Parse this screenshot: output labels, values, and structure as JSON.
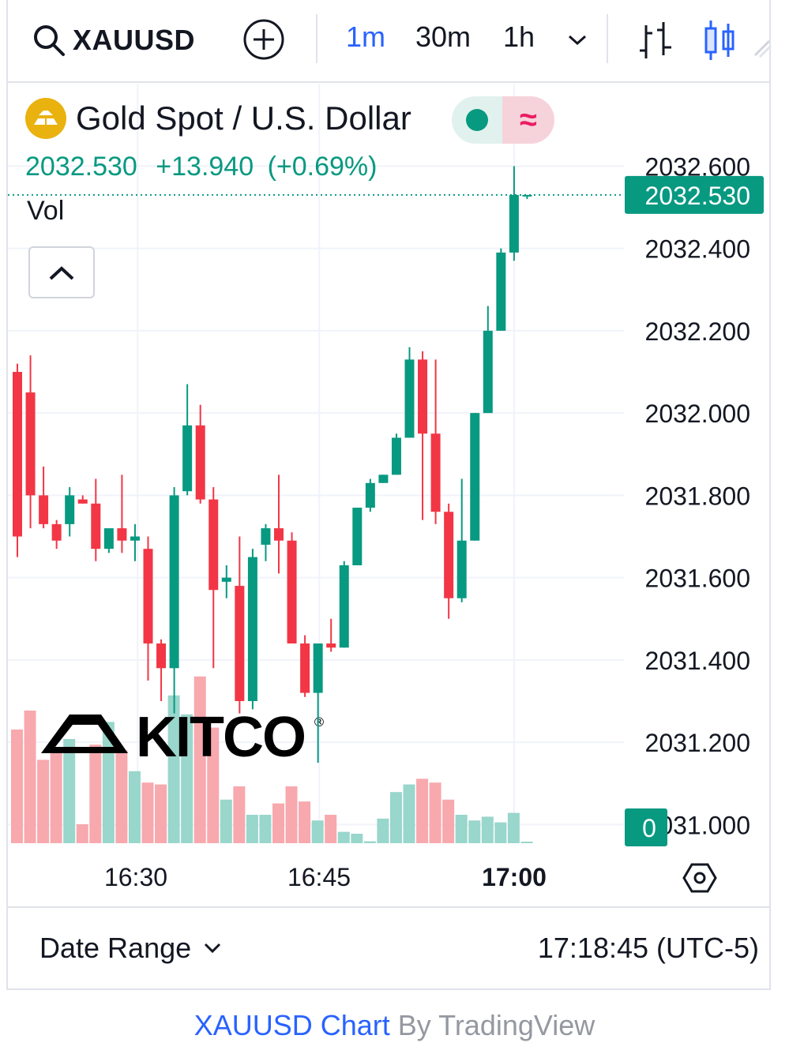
{
  "toolbar": {
    "symbol": "XAUUSD",
    "intervals": [
      "1m",
      "30m",
      "1h"
    ],
    "active_interval": "1m"
  },
  "legend": {
    "title": "Gold Spot / U.S. Dollar",
    "last": "2032.530",
    "change": "+13.940",
    "change_pct": "(+0.69%)",
    "volume_label": "Vol",
    "status_symbol": "≈"
  },
  "footer": {
    "date_range_label": "Date Range",
    "clock": "17:18:45 (UTC-5)",
    "credit_symbol": "XAUUSD Chart",
    "credit_by": "By TradingView"
  },
  "colors": {
    "up": "#089981",
    "down": "#f23645",
    "up_volume": "#99d6cc",
    "down_volume": "#f7a9ae",
    "accent": "#2962ff"
  },
  "chart_data": {
    "type": "candlestick",
    "symbol": "XAUUSD",
    "x_ticks": [
      "16:30",
      "16:45",
      "17:00"
    ],
    "x_tick_bold": "17:00",
    "y_ticks": [
      "2032.600",
      "2032.400",
      "2032.200",
      "2032.000",
      "2031.800",
      "2031.600",
      "2031.400",
      "2031.200",
      "2031.000"
    ],
    "ylim": [
      2030.97,
      2032.62
    ],
    "last_price_label": "2032.530",
    "last_price": 2032.53,
    "volume_axis_label": "0",
    "watermark": "KITCO",
    "grid": true,
    "candles": [
      {
        "o": 2032.1,
        "h": 2032.12,
        "l": 2031.65,
        "c": 2031.7,
        "v": 0.6
      },
      {
        "o": 2032.05,
        "h": 2032.14,
        "l": 2031.72,
        "c": 2031.8,
        "v": 0.7
      },
      {
        "o": 2031.8,
        "h": 2031.87,
        "l": 2031.72,
        "c": 2031.73,
        "v": 0.44
      },
      {
        "o": 2031.73,
        "h": 2031.74,
        "l": 2031.67,
        "c": 2031.69,
        "v": 0.5
      },
      {
        "o": 2031.73,
        "h": 2031.82,
        "l": 2031.7,
        "c": 2031.8,
        "v": 0.55
      },
      {
        "o": 2031.79,
        "h": 2031.8,
        "l": 2031.78,
        "c": 2031.78,
        "v": 0.1
      },
      {
        "o": 2031.78,
        "h": 2031.84,
        "l": 2031.64,
        "c": 2031.67,
        "v": 0.52
      },
      {
        "o": 2031.67,
        "h": 2031.71,
        "l": 2031.66,
        "c": 2031.72,
        "v": 0.64
      },
      {
        "o": 2031.72,
        "h": 2031.85,
        "l": 2031.66,
        "c": 2031.69,
        "v": 0.49
      },
      {
        "o": 2031.69,
        "h": 2031.73,
        "l": 2031.64,
        "c": 2031.7,
        "v": 0.38
      },
      {
        "o": 2031.67,
        "h": 2031.7,
        "l": 2031.35,
        "c": 2031.44,
        "v": 0.32
      },
      {
        "o": 2031.44,
        "h": 2031.45,
        "l": 2031.3,
        "c": 2031.38,
        "v": 0.31
      },
      {
        "o": 2031.38,
        "h": 2031.82,
        "l": 2031.27,
        "c": 2031.8,
        "v": 0.78
      },
      {
        "o": 2031.81,
        "h": 2032.07,
        "l": 2031.8,
        "c": 2031.97,
        "v": 0.68
      },
      {
        "o": 2031.97,
        "h": 2032.02,
        "l": 2031.78,
        "c": 2031.79,
        "v": 0.88
      },
      {
        "o": 2031.79,
        "h": 2031.82,
        "l": 2031.38,
        "c": 2031.57,
        "v": 0.61
      },
      {
        "o": 2031.59,
        "h": 2031.63,
        "l": 2031.55,
        "c": 2031.6,
        "v": 0.23
      },
      {
        "o": 2031.58,
        "h": 2031.7,
        "l": 2031.27,
        "c": 2031.3,
        "v": 0.3
      },
      {
        "o": 2031.3,
        "h": 2031.67,
        "l": 2031.28,
        "c": 2031.65,
        "v": 0.15
      },
      {
        "o": 2031.68,
        "h": 2031.73,
        "l": 2031.64,
        "c": 2031.72,
        "v": 0.15
      },
      {
        "o": 2031.72,
        "h": 2031.85,
        "l": 2031.61,
        "c": 2031.69,
        "v": 0.21
      },
      {
        "o": 2031.69,
        "h": 2031.71,
        "l": 2031.45,
        "c": 2031.44,
        "v": 0.3
      },
      {
        "o": 2031.44,
        "h": 2031.46,
        "l": 2031.31,
        "c": 2031.32,
        "v": 0.22
      },
      {
        "o": 2031.32,
        "h": 2031.44,
        "l": 2031.15,
        "c": 2031.44,
        "v": 0.12
      },
      {
        "o": 2031.44,
        "h": 2031.5,
        "l": 2031.42,
        "c": 2031.43,
        "v": 0.15
      },
      {
        "o": 2031.43,
        "h": 2031.64,
        "l": 2031.43,
        "c": 2031.63,
        "v": 0.06
      },
      {
        "o": 2031.63,
        "h": 2031.77,
        "l": 2031.63,
        "c": 2031.77,
        "v": 0.05
      },
      {
        "o": 2031.77,
        "h": 2031.84,
        "l": 2031.76,
        "c": 2031.83,
        "v": 0.01
      },
      {
        "o": 2031.83,
        "h": 2031.85,
        "l": 2031.83,
        "c": 2031.85,
        "v": 0.13
      },
      {
        "o": 2031.85,
        "h": 2031.95,
        "l": 2031.85,
        "c": 2031.94,
        "v": 0.27
      },
      {
        "o": 2031.94,
        "h": 2032.16,
        "l": 2031.94,
        "c": 2032.13,
        "v": 0.31
      },
      {
        "o": 2032.13,
        "h": 2032.15,
        "l": 2031.74,
        "c": 2031.95,
        "v": 0.34
      },
      {
        "o": 2031.95,
        "h": 2032.13,
        "l": 2031.73,
        "c": 2031.76,
        "v": 0.32
      },
      {
        "o": 2031.76,
        "h": 2031.78,
        "l": 2031.5,
        "c": 2031.55,
        "v": 0.23
      },
      {
        "o": 2031.55,
        "h": 2031.84,
        "l": 2031.54,
        "c": 2031.69,
        "v": 0.15
      },
      {
        "o": 2031.69,
        "h": 2032.0,
        "l": 2031.69,
        "c": 2032.0,
        "v": 0.12
      },
      {
        "o": 2032.0,
        "h": 2032.26,
        "l": 2032.0,
        "c": 2032.2,
        "v": 0.14
      },
      {
        "o": 2032.2,
        "h": 2032.4,
        "l": 2032.2,
        "c": 2032.39,
        "v": 0.11
      },
      {
        "o": 2032.39,
        "h": 2032.6,
        "l": 2032.37,
        "c": 2032.53,
        "v": 0.16
      },
      {
        "o": 2032.53,
        "h": 2032.53,
        "l": 2032.52,
        "c": 2032.53,
        "v": 0.0
      }
    ]
  }
}
